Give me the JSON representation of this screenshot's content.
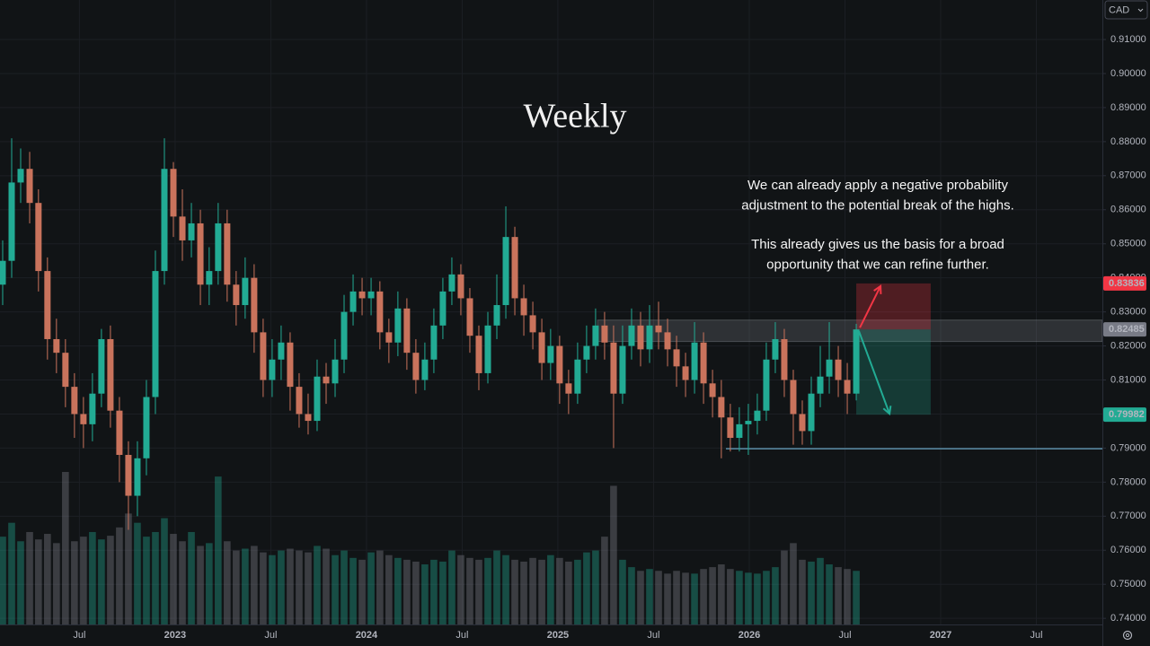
{
  "chart_data": {
    "type": "candlestick",
    "title": "Weekly",
    "currency": "CAD",
    "note": [
      [
        "We can already apply a negative probability",
        "adjustment to the potential break of the highs."
      ],
      [
        "This already gives us the basis for a broad",
        "opportunity that we can refine further."
      ]
    ],
    "x": [
      2022.099,
      2022.146,
      2022.193,
      2022.24,
      2022.286,
      2022.333,
      2022.38,
      2022.427,
      2022.474,
      2022.521,
      2022.568,
      2022.615,
      2022.662,
      2022.709,
      2022.756,
      2022.803,
      2022.85,
      2022.897,
      2022.944,
      2022.991,
      2023.038,
      2023.085,
      2023.132,
      2023.178,
      2023.225,
      2023.272,
      2023.319,
      2023.366,
      2023.413,
      2023.46,
      2023.507,
      2023.554,
      2023.601,
      2023.648,
      2023.695,
      2023.742,
      2023.789,
      2023.836,
      2023.883,
      2023.93,
      2023.977,
      2024.024,
      2024.07,
      2024.117,
      2024.164,
      2024.211,
      2024.258,
      2024.305,
      2024.352,
      2024.399,
      2024.446,
      2024.493,
      2024.54,
      2024.587,
      2024.634,
      2024.681,
      2024.728,
      2024.775,
      2024.822,
      2024.869,
      2024.916,
      2024.962,
      2025.009,
      2025.056,
      2025.103,
      2025.15,
      2025.197,
      2025.244,
      2025.291,
      2025.338,
      2025.385,
      2025.432,
      2025.479,
      2025.526,
      2025.573,
      2025.62,
      2025.667,
      2025.714,
      2025.761,
      2025.808,
      2025.854,
      2025.901,
      2025.948,
      2025.995,
      2026.042,
      2026.089,
      2026.136,
      2026.183,
      2026.23,
      2026.277,
      2026.324,
      2026.371,
      2026.418,
      2026.465,
      2026.512,
      2026.559
    ],
    "open": [
      0.838,
      0.845,
      0.868,
      0.872,
      0.862,
      0.842,
      0.822,
      0.818,
      0.808,
      0.8,
      0.797,
      0.806,
      0.822,
      0.801,
      0.788,
      0.776,
      0.787,
      0.805,
      0.842,
      0.872,
      0.858,
      0.851,
      0.856,
      0.838,
      0.842,
      0.856,
      0.838,
      0.832,
      0.84,
      0.824,
      0.81,
      0.816,
      0.821,
      0.808,
      0.8,
      0.798,
      0.811,
      0.809,
      0.816,
      0.83,
      0.836,
      0.834,
      0.836,
      0.824,
      0.821,
      0.831,
      0.818,
      0.81,
      0.816,
      0.826,
      0.836,
      0.841,
      0.834,
      0.823,
      0.812,
      0.826,
      0.832,
      0.852,
      0.834,
      0.829,
      0.824,
      0.815,
      0.82,
      0.809,
      0.806,
      0.816,
      0.82,
      0.826,
      0.821,
      0.806,
      0.82,
      0.826,
      0.819,
      0.826,
      0.824,
      0.819,
      0.814,
      0.81,
      0.821,
      0.809,
      0.805,
      0.799,
      0.793,
      0.797,
      0.798,
      0.801,
      0.816,
      0.822,
      0.81,
      0.8,
      0.795,
      0.806,
      0.811,
      0.816,
      0.81,
      0.806
    ],
    "high": [
      0.851,
      0.881,
      0.878,
      0.877,
      0.866,
      0.846,
      0.828,
      0.822,
      0.812,
      0.805,
      0.812,
      0.825,
      0.826,
      0.805,
      0.792,
      0.792,
      0.81,
      0.848,
      0.881,
      0.874,
      0.866,
      0.862,
      0.86,
      0.849,
      0.862,
      0.86,
      0.842,
      0.846,
      0.844,
      0.828,
      0.822,
      0.826,
      0.824,
      0.812,
      0.806,
      0.816,
      0.815,
      0.822,
      0.835,
      0.841,
      0.84,
      0.84,
      0.839,
      0.828,
      0.836,
      0.834,
      0.822,
      0.821,
      0.831,
      0.84,
      0.846,
      0.844,
      0.837,
      0.826,
      0.83,
      0.841,
      0.861,
      0.855,
      0.838,
      0.833,
      0.828,
      0.825,
      0.823,
      0.813,
      0.821,
      0.826,
      0.831,
      0.83,
      0.826,
      0.826,
      0.831,
      0.83,
      0.832,
      0.833,
      0.828,
      0.823,
      0.818,
      0.827,
      0.824,
      0.813,
      0.81,
      0.803,
      0.802,
      0.803,
      0.806,
      0.821,
      0.827,
      0.825,
      0.813,
      0.804,
      0.811,
      0.82,
      0.827,
      0.82,
      0.815,
      0.8265
    ],
    "low": [
      0.832,
      0.84,
      0.862,
      0.856,
      0.836,
      0.816,
      0.812,
      0.802,
      0.793,
      0.79,
      0.792,
      0.802,
      0.796,
      0.78,
      0.766,
      0.77,
      0.782,
      0.8,
      0.838,
      0.852,
      0.845,
      0.846,
      0.832,
      0.832,
      0.838,
      0.833,
      0.826,
      0.828,
      0.818,
      0.805,
      0.805,
      0.81,
      0.801,
      0.796,
      0.794,
      0.795,
      0.803,
      0.805,
      0.812,
      0.826,
      0.829,
      0.829,
      0.819,
      0.815,
      0.817,
      0.813,
      0.806,
      0.807,
      0.812,
      0.822,
      0.832,
      0.829,
      0.818,
      0.807,
      0.809,
      0.822,
      0.828,
      0.829,
      0.823,
      0.819,
      0.81,
      0.81,
      0.803,
      0.8,
      0.803,
      0.812,
      0.816,
      0.816,
      0.79,
      0.803,
      0.816,
      0.814,
      0.815,
      0.819,
      0.814,
      0.808,
      0.805,
      0.806,
      0.803,
      0.799,
      0.787,
      0.789,
      0.789,
      0.788,
      0.794,
      0.798,
      0.812,
      0.805,
      0.791,
      0.791,
      0.791,
      0.802,
      0.806,
      0.805,
      0.8,
      0.804
    ],
    "close": [
      0.845,
      0.868,
      0.872,
      0.862,
      0.842,
      0.822,
      0.818,
      0.808,
      0.8,
      0.797,
      0.806,
      0.822,
      0.801,
      0.788,
      0.776,
      0.787,
      0.805,
      0.842,
      0.872,
      0.858,
      0.851,
      0.856,
      0.838,
      0.842,
      0.856,
      0.838,
      0.832,
      0.84,
      0.824,
      0.81,
      0.816,
      0.821,
      0.808,
      0.8,
      0.798,
      0.811,
      0.809,
      0.816,
      0.83,
      0.836,
      0.834,
      0.836,
      0.824,
      0.821,
      0.831,
      0.818,
      0.81,
      0.816,
      0.826,
      0.836,
      0.841,
      0.834,
      0.823,
      0.812,
      0.826,
      0.832,
      0.852,
      0.834,
      0.829,
      0.824,
      0.815,
      0.82,
      0.809,
      0.806,
      0.816,
      0.82,
      0.826,
      0.821,
      0.806,
      0.82,
      0.826,
      0.819,
      0.826,
      0.824,
      0.819,
      0.814,
      0.81,
      0.821,
      0.809,
      0.805,
      0.799,
      0.793,
      0.797,
      0.798,
      0.801,
      0.816,
      0.822,
      0.81,
      0.8,
      0.795,
      0.806,
      0.811,
      0.816,
      0.81,
      0.806,
      0.82485
    ],
    "volume": [
      95,
      110,
      90,
      100,
      92,
      98,
      88,
      165,
      90,
      95,
      100,
      92,
      96,
      105,
      120,
      110,
      95,
      100,
      115,
      98,
      90,
      100,
      85,
      88,
      160,
      90,
      80,
      82,
      85,
      78,
      75,
      80,
      82,
      80,
      78,
      85,
      82,
      75,
      80,
      72,
      70,
      78,
      80,
      75,
      72,
      70,
      68,
      65,
      70,
      68,
      80,
      75,
      72,
      70,
      72,
      80,
      75,
      70,
      68,
      72,
      70,
      75,
      72,
      68,
      70,
      78,
      80,
      95,
      150,
      70,
      62,
      58,
      60,
      58,
      55,
      58,
      56,
      55,
      60,
      62,
      65,
      60,
      58,
      56,
      55,
      58,
      62,
      80,
      88,
      70,
      68,
      72,
      65,
      62,
      60,
      58
    ],
    "colors": {
      "up": "#22ab94",
      "down": "#c9735c"
    },
    "xlim": [
      2022.085,
      2027.845
    ],
    "ylim": [
      0.7382,
      0.9216
    ],
    "xticks": [
      {
        "value": 2022.5,
        "label": "Jul"
      },
      2023,
      {
        "value": 2023.5,
        "label": "Jul"
      },
      2024,
      {
        "value": 2024.5,
        "label": "Jul"
      },
      2025,
      {
        "value": 2025.5,
        "label": "Jul"
      },
      2026,
      {
        "value": 2026.5,
        "label": "Jul"
      },
      2027,
      {
        "value": 2027.5,
        "label": "Jul"
      }
    ],
    "yticks": [
      {
        "value": 0.74,
        "label": "0.74000"
      },
      {
        "value": 0.75,
        "label": "0.75000"
      },
      {
        "value": 0.76,
        "label": "0.76000"
      },
      {
        "value": 0.77,
        "label": "0.77000"
      },
      {
        "value": 0.78,
        "label": "0.78000"
      },
      {
        "value": 0.79,
        "label": "0.79000"
      },
      {
        "value": 0.8,
        "label": "0.80000"
      },
      {
        "value": 0.81,
        "label": "0.81000"
      },
      {
        "value": 0.82,
        "label": "0.82000"
      },
      {
        "value": 0.83,
        "label": "0.83000"
      },
      {
        "value": 0.84,
        "label": "0.84000"
      },
      {
        "value": 0.85,
        "label": "0.85000"
      },
      {
        "value": 0.86,
        "label": "0.86000"
      },
      {
        "value": 0.87,
        "label": "0.87000"
      },
      {
        "value": 0.88,
        "label": "0.88000"
      },
      {
        "value": 0.89,
        "label": "0.89000"
      },
      {
        "value": 0.9,
        "label": "0.90000"
      },
      {
        "value": 0.91,
        "label": "0.91000"
      }
    ],
    "grid": true,
    "zone": {
      "low": 0.8213,
      "high": 0.8276,
      "start": 2025.207
    },
    "support": {
      "value": 0.7898,
      "start": 2025.878
    },
    "position": {
      "stop": 0.83836,
      "entry": 0.82485,
      "target": 0.79982,
      "x": [
        2026.559,
        2026.948
      ]
    }
  }
}
